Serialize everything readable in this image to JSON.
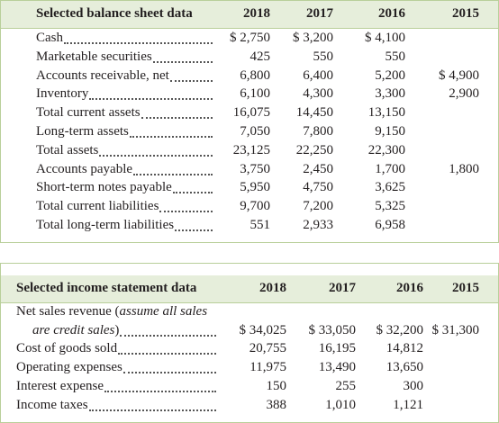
{
  "balance_sheet": {
    "title": "Selected balance sheet data",
    "years": [
      "2018",
      "2017",
      "2016",
      "2015"
    ],
    "rows": [
      {
        "label": "Cash",
        "values": [
          "$ 2,750",
          "$ 3,200",
          "$ 4,100"
        ]
      },
      {
        "label": "Marketable securities",
        "values": [
          "425",
          "550",
          "550"
        ]
      },
      {
        "label": "Accounts receivable, net",
        "values": [
          "6,800",
          "6,400",
          "5,200",
          "$ 4,900"
        ]
      },
      {
        "label": "Inventory",
        "values": [
          "6,100",
          "4,300",
          "3,300",
          "2,900"
        ]
      },
      {
        "label": "Total current assets",
        "values": [
          "16,075",
          "14,450",
          "13,150"
        ]
      },
      {
        "label": "Long-term assets",
        "values": [
          "7,050",
          "7,800",
          "9,150"
        ]
      },
      {
        "label": "Total assets",
        "values": [
          "23,125",
          "22,250",
          "22,300"
        ]
      },
      {
        "label": "Accounts payable",
        "values": [
          "3,750",
          "2,450",
          "1,700",
          "1,800"
        ]
      },
      {
        "label": "Short-term notes payable",
        "values": [
          "5,950",
          "4,750",
          "3,625"
        ]
      },
      {
        "label": "Total current liabilities",
        "values": [
          "9,700",
          "7,200",
          "5,325"
        ]
      },
      {
        "label": "Total long-term liabilities",
        "values": [
          "551",
          "2,933",
          "6,958"
        ]
      }
    ]
  },
  "income_statement": {
    "title": "Selected income statement data",
    "years": [
      "2018",
      "2017",
      "2016",
      "2015"
    ],
    "net_sales": {
      "label_start": "Net sales revenue (",
      "label_italic_1": "assume all sales",
      "label_italic_2": "are credit sales",
      "label_end": ")",
      "values": [
        "$ 34,025",
        "$ 33,050",
        "$ 32,200",
        "$ 31,300"
      ]
    },
    "rows": [
      {
        "label": "Cost of goods sold",
        "values": [
          "20,755",
          "16,195",
          "14,812"
        ]
      },
      {
        "label": "Operating expenses",
        "values": [
          "11,975",
          "13,490",
          "13,650"
        ]
      },
      {
        "label": "Interest expense",
        "values": [
          "150",
          "255",
          "300"
        ]
      },
      {
        "label": "Income taxes",
        "values": [
          "388",
          "1,010",
          "1,121"
        ]
      }
    ]
  }
}
